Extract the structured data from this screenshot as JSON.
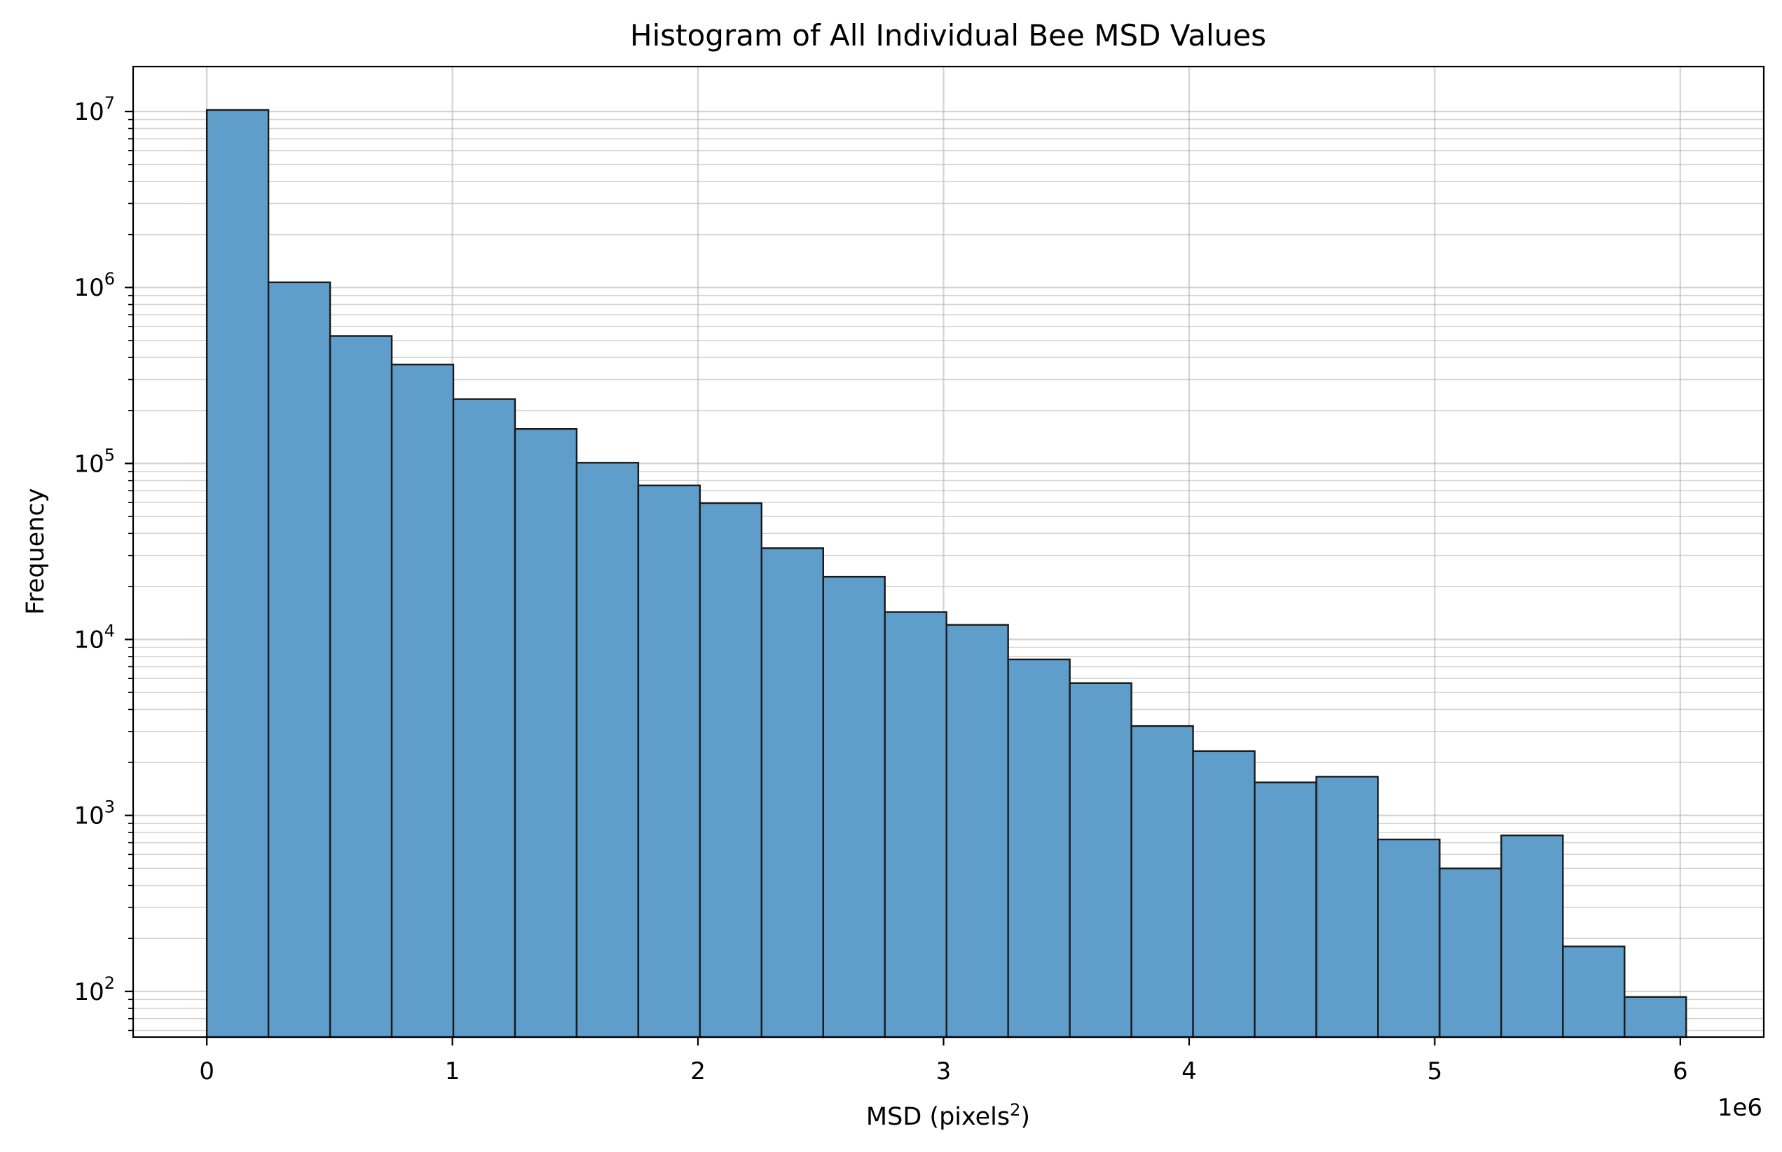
{
  "chart_data": {
    "type": "bar",
    "title": "Histogram of All Individual Bee MSD Values",
    "xlabel": "MSD (pixels",
    "xlabel_sup": "2",
    "xlabel_close": ")",
    "ylabel": "Frequency",
    "x_offset_label": "1e6",
    "x_scale_factor": 1000000,
    "y_scale": "log",
    "grid": true,
    "bar_color": "#5f9dca",
    "edge_color": "#1a1a1a",
    "xlim": [
      -300000,
      6340000
    ],
    "ylim": [
      55,
      18000000
    ],
    "x_ticks": [
      0,
      1,
      2,
      3,
      4,
      5,
      6
    ],
    "y_ticks": [
      {
        "base": "10",
        "exp": "2"
      },
      {
        "base": "10",
        "exp": "3"
      },
      {
        "base": "10",
        "exp": "4"
      },
      {
        "base": "10",
        "exp": "5"
      },
      {
        "base": "10",
        "exp": "6"
      },
      {
        "base": "10",
        "exp": "7"
      }
    ],
    "bin_edges": [
      0,
      251000,
      502000,
      753000,
      1004000,
      1255000,
      1506000,
      1757000,
      2008000,
      2259000,
      2510000,
      2761000,
      3012000,
      3263000,
      3514000,
      3765000,
      4016000,
      4267000,
      4518000,
      4769000,
      5020000,
      5271000,
      5522000,
      5773000,
      6024000
    ],
    "values": [
      10200000,
      1070000,
      530000,
      365000,
      232000,
      157000,
      101000,
      75000,
      59500,
      33000,
      22700,
      14300,
      12100,
      7700,
      5650,
      3220,
      2320,
      1540,
      1660,
      730,
      500,
      770,
      180,
      93
    ]
  }
}
